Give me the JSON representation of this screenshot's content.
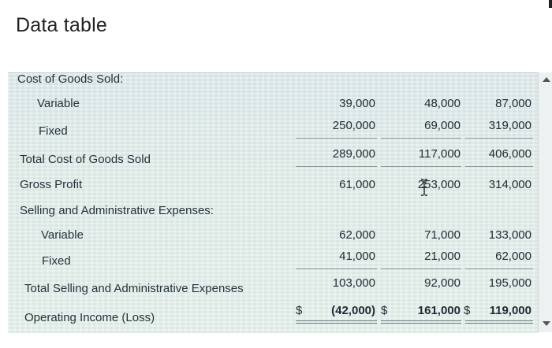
{
  "title": "Data table",
  "rows": {
    "cogs_header": "Cost of Goods Sold:",
    "variable": "Variable",
    "fixed": "Fixed",
    "total_cogs": "Total Cost of Goods Sold",
    "gross_profit": "Gross Profit",
    "sga_header": "Selling and Administrative Expenses:",
    "sga_variable": "Variable",
    "sga_fixed": "Fixed",
    "total_sga": "Total Selling and Administrative Expenses",
    "operating_income": "Operating Income (Loss)"
  },
  "values": {
    "variable": [
      "39,000",
      "48,000",
      "87,000"
    ],
    "fixed": [
      "250,000",
      "69,000",
      "319,000"
    ],
    "total_cogs": [
      "289,000",
      "117,000",
      "406,000"
    ],
    "gross_profit": [
      "61,000",
      "253,000",
      "314,000"
    ],
    "sga_variable": [
      "62,000",
      "71,000",
      "133,000"
    ],
    "sga_fixed": [
      "41,000",
      "21,000",
      "62,000"
    ],
    "total_sga": [
      "103,000",
      "92,000",
      "195,000"
    ],
    "operating_income": [
      "(42,000)",
      "161,000",
      "119,000"
    ]
  },
  "currency_symbol": "$",
  "icons": {
    "text_cursor": "i-beam-cursor-icon",
    "scroll_up": "chevron-up-icon",
    "scroll_down": "chevron-down-icon"
  }
}
